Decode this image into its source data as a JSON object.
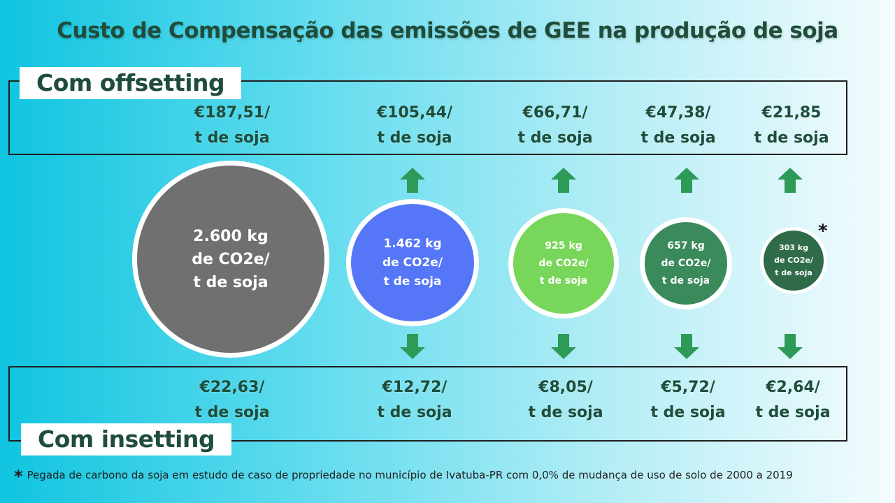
{
  "title": "Custo de Compensação das emissões de GEE na produção de soja",
  "offsetting": {
    "label": "Com offsetting",
    "prices": [
      {
        "value": "€187,51/",
        "unit": "t de soja"
      },
      {
        "value": "€105,44/",
        "unit": "t de soja"
      },
      {
        "value": "€66,71/",
        "unit": "t de soja"
      },
      {
        "value": "€47,38/",
        "unit": "t de soja"
      },
      {
        "value": "€21,85",
        "unit": "t de soja"
      }
    ]
  },
  "insetting": {
    "label": "Com insetting",
    "prices": [
      {
        "value": "€22,63/",
        "unit": "t de soja"
      },
      {
        "value": "€12,72/",
        "unit": "t de soja"
      },
      {
        "value": "€8,05/",
        "unit": "t de soja"
      },
      {
        "value": "€5,72/",
        "unit": "t de soja"
      },
      {
        "value": "€2,64/",
        "unit": "t de soja"
      }
    ]
  },
  "emissions": [
    {
      "line1": "2.600 kg",
      "line2": "de CO2e/",
      "line3": "t de soja",
      "color": "#707070"
    },
    {
      "line1": "1.462 kg",
      "line2": "de CO2e/",
      "line3": "t de soja",
      "color": "#5577f7"
    },
    {
      "line1": "925  kg",
      "line2": "de CO2e/",
      "line3": "t de soja",
      "color": "#78d65a"
    },
    {
      "line1": "657  kg",
      "line2": "de CO2e/",
      "line3": "t de soja",
      "color": "#3a8a5c"
    },
    {
      "line1": "303 kg",
      "line2": "de CO2e/",
      "line3": "t de soja",
      "color": "#2f6b48"
    }
  ],
  "asterisk": "*",
  "footnote": {
    "marker": "*",
    "text": "Pegada de carbono da soja em estudo de caso de propriedade no município de Ivatuba-PR com  0,0% de mudança de uso de solo de 2000 a 2019"
  },
  "colors": {
    "arrow": "#2e9a58",
    "title": "#1f4d3a"
  }
}
